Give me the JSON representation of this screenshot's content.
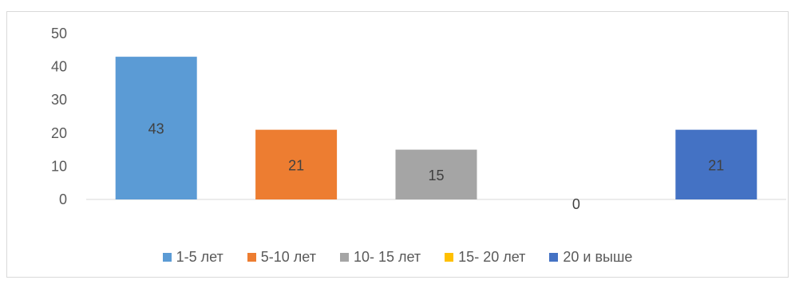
{
  "chart_data": {
    "type": "bar",
    "categories": [
      "1-5 лет",
      "5-10 лет",
      "10- 15 лет",
      "15- 20 лет",
      "20 и выше"
    ],
    "values": [
      43,
      21,
      15,
      0,
      21
    ],
    "data_labels": [
      "43",
      "21",
      "15",
      "0",
      "21"
    ],
    "colors": [
      "#5b9bd5",
      "#ed7d31",
      "#a5a5a5",
      "#ffc000",
      "#4472c4"
    ],
    "ylim": [
      0,
      50
    ],
    "yticks": [
      "0",
      "10",
      "20",
      "30",
      "40",
      "50"
    ],
    "ytick_values": [
      0,
      10,
      20,
      30,
      40,
      50
    ],
    "legend_position": "bottom",
    "grid": false
  }
}
